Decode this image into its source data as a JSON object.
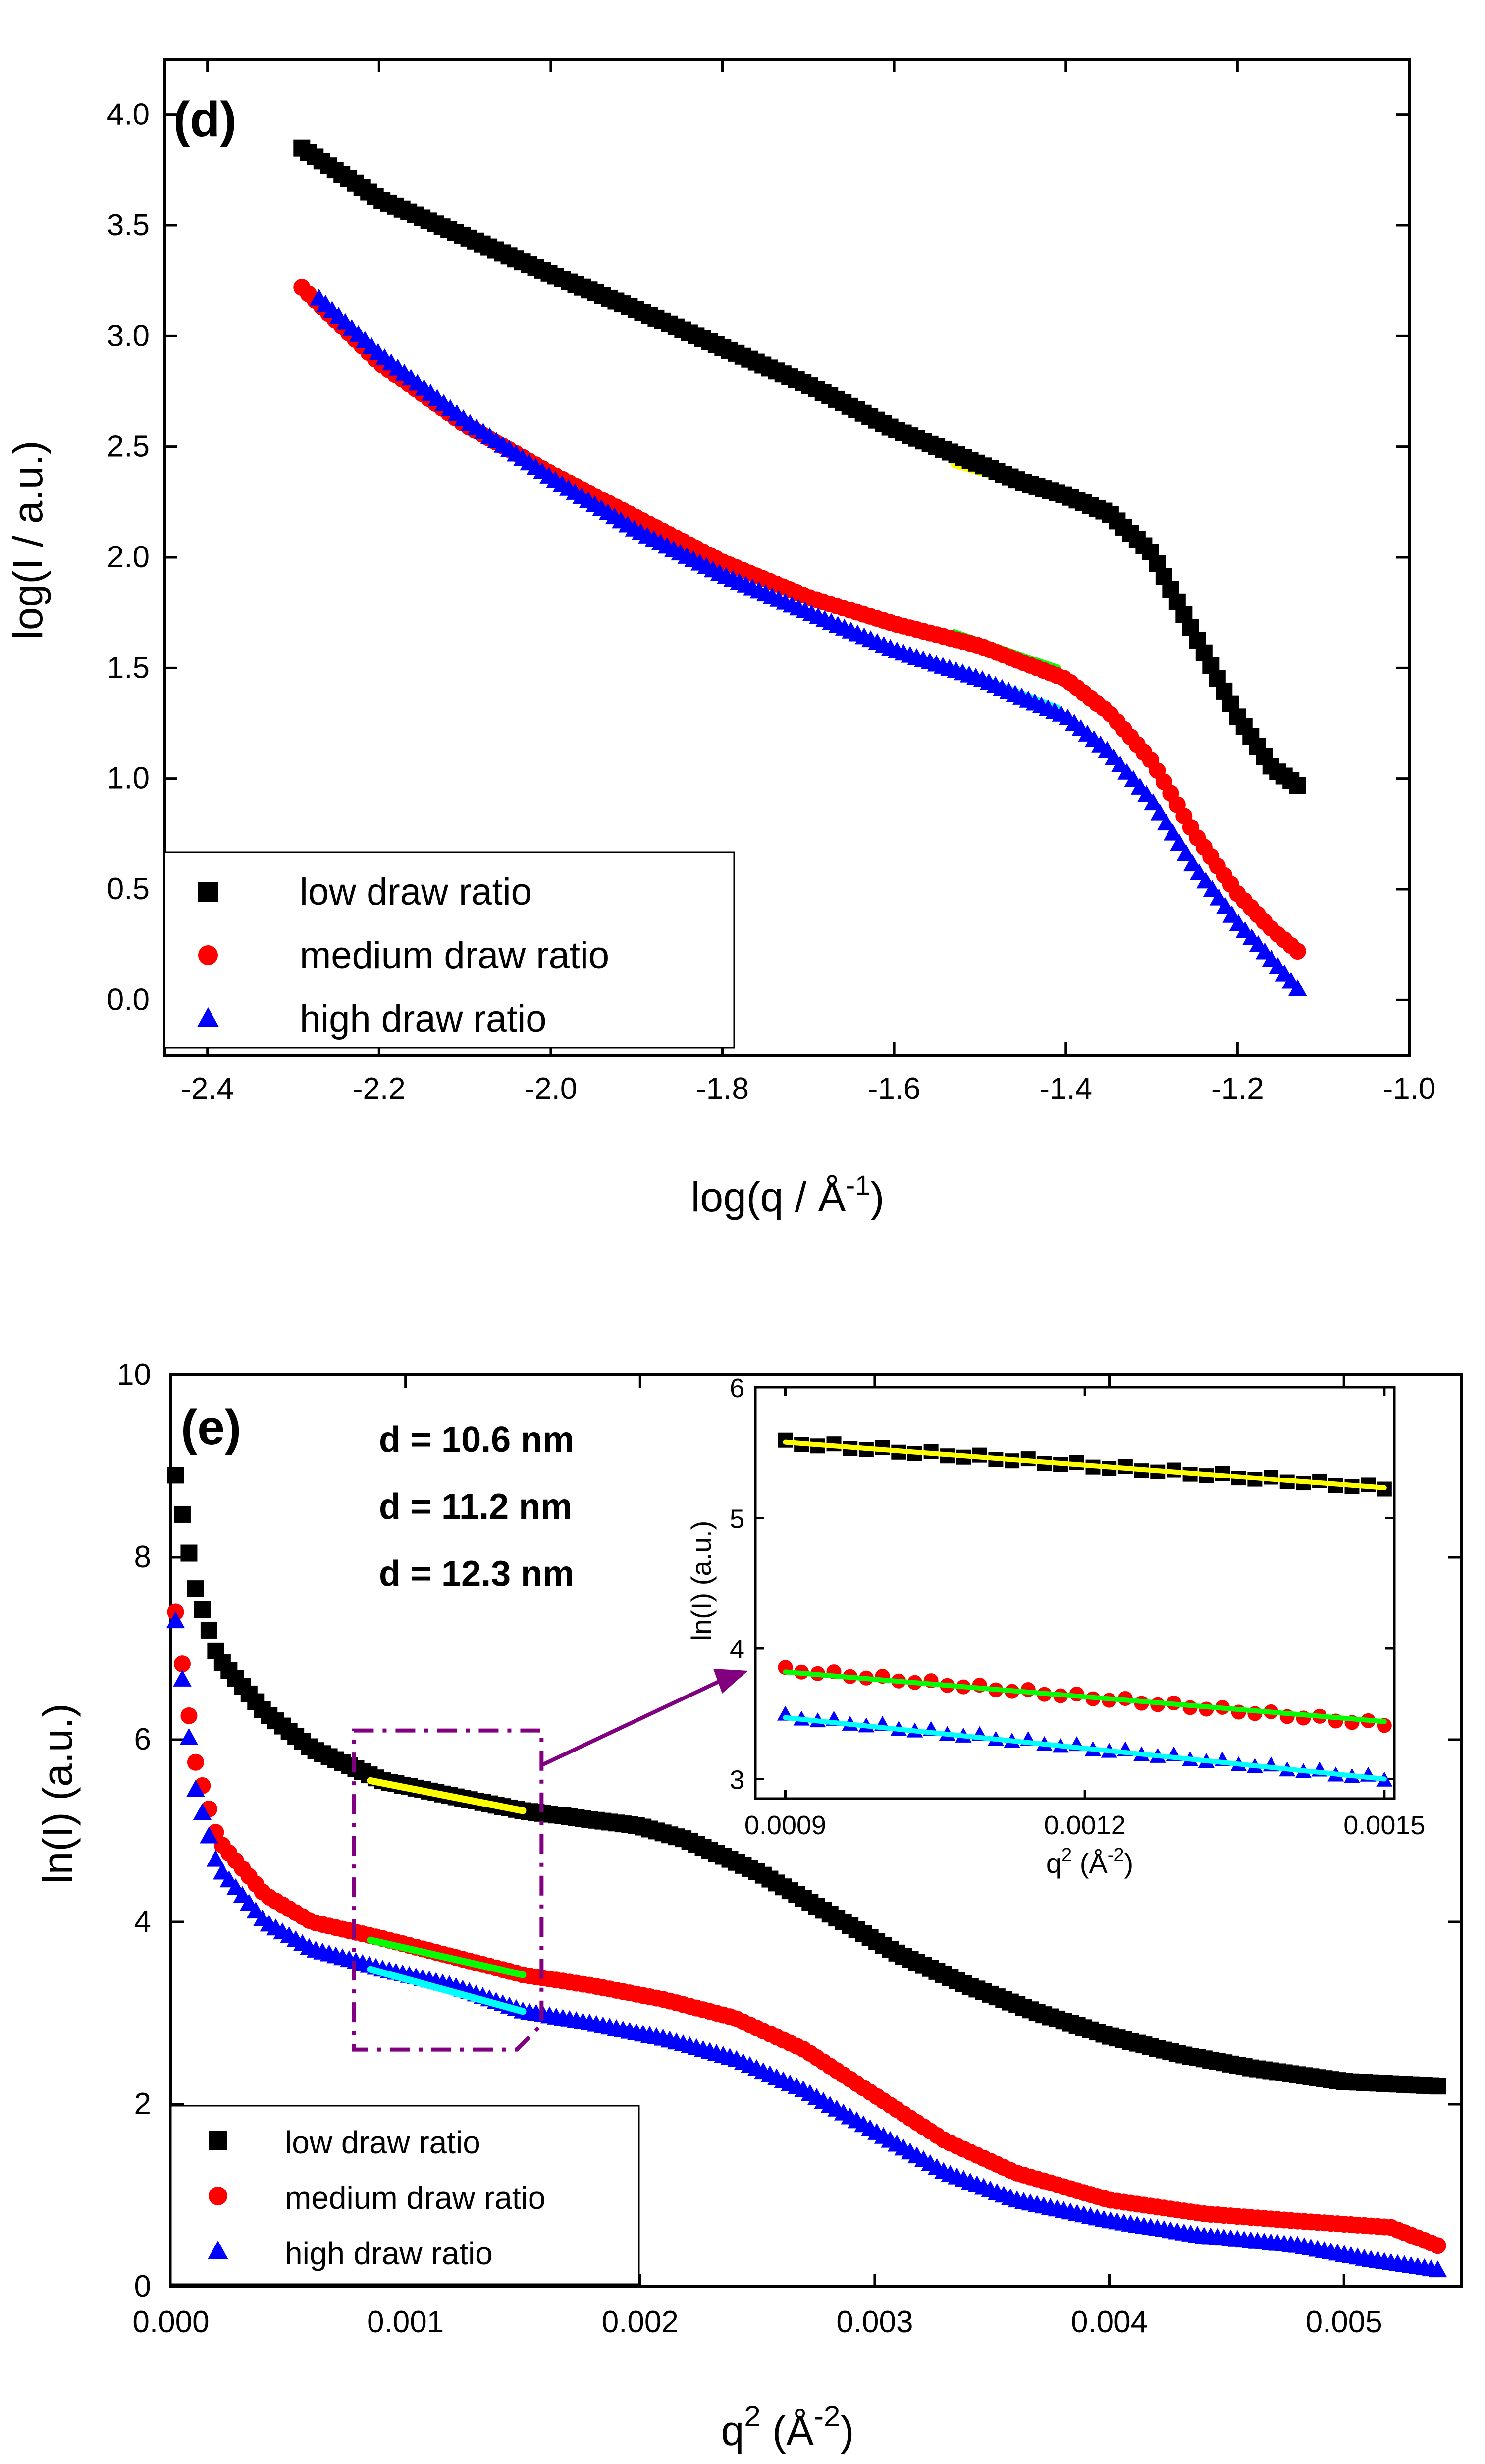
{
  "chart_data": [
    {
      "panel_label": "(d)",
      "type": "scatter",
      "xlabel": "log(q / Å",
      "xlabel_sup": "-1",
      "xlabel_end": ")",
      "ylabel": "log(I / a.u.)",
      "xlim": [
        -2.45,
        -1.0
      ],
      "ylim": [
        -0.25,
        4.25
      ],
      "x_ticks": [
        -2.4,
        -2.2,
        -2.0,
        -1.8,
        -1.6,
        -1.4,
        -1.2,
        -1.0
      ],
      "x_tick_labels": [
        "-2.4",
        "-2.2",
        "-2.0",
        "-1.8",
        "-1.6",
        "-1.4",
        "-1.2",
        "-1.0"
      ],
      "y_ticks": [
        0.0,
        0.5,
        1.0,
        1.5,
        2.0,
        2.5,
        3.0,
        3.5,
        4.0
      ],
      "y_tick_labels": [
        "0.0",
        "0.5",
        "1.0",
        "1.5",
        "2.0",
        "2.5",
        "3.0",
        "3.5",
        "4.0"
      ],
      "legend": "bottom-left",
      "series": [
        {
          "name": "low draw ratio",
          "marker": "square",
          "color": "#000000",
          "points": [
            [
              -2.29,
              3.85
            ],
            [
              -2.2,
              3.62
            ],
            [
              -2.1,
              3.45
            ],
            [
              -2.0,
              3.28
            ],
            [
              -1.9,
              3.12
            ],
            [
              -1.8,
              2.95
            ],
            [
              -1.7,
              2.78
            ],
            [
              -1.6,
              2.58
            ],
            [
              -1.5,
              2.42
            ],
            [
              -1.45,
              2.34
            ],
            [
              -1.4,
              2.28
            ],
            [
              -1.35,
              2.2
            ],
            [
              -1.3,
              2.02
            ],
            [
              -1.25,
              1.65
            ],
            [
              -1.2,
              1.28
            ],
            [
              -1.16,
              1.05
            ],
            [
              -1.13,
              0.97
            ]
          ]
        },
        {
          "name": "medium draw ratio",
          "marker": "circle",
          "color": "#ff0000",
          "points": [
            [
              -2.29,
              3.22
            ],
            [
              -2.2,
              2.88
            ],
            [
              -2.1,
              2.6
            ],
            [
              -2.0,
              2.38
            ],
            [
              -1.9,
              2.18
            ],
            [
              -1.8,
              1.98
            ],
            [
              -1.7,
              1.82
            ],
            [
              -1.6,
              1.7
            ],
            [
              -1.5,
              1.6
            ],
            [
              -1.4,
              1.45
            ],
            [
              -1.35,
              1.3
            ],
            [
              -1.3,
              1.08
            ],
            [
              -1.25,
              0.75
            ],
            [
              -1.2,
              0.48
            ],
            [
              -1.16,
              0.32
            ],
            [
              -1.13,
              0.22
            ]
          ]
        },
        {
          "name": "high draw ratio",
          "marker": "triangle",
          "color": "#0000ff",
          "points": [
            [
              -2.27,
              3.17
            ],
            [
              -2.2,
              2.92
            ],
            [
              -2.1,
              2.62
            ],
            [
              -2.0,
              2.36
            ],
            [
              -1.9,
              2.12
            ],
            [
              -1.8,
              1.92
            ],
            [
              -1.7,
              1.75
            ],
            [
              -1.6,
              1.58
            ],
            [
              -1.5,
              1.45
            ],
            [
              -1.4,
              1.28
            ],
            [
              -1.35,
              1.12
            ],
            [
              -1.3,
              0.9
            ],
            [
              -1.25,
              0.6
            ],
            [
              -1.2,
              0.35
            ],
            [
              -1.16,
              0.18
            ],
            [
              -1.13,
              0.05
            ]
          ]
        }
      ],
      "fits": [
        {
          "color": "#ffff00",
          "x": [
            -1.53,
            -1.41
          ],
          "y": [
            2.42,
            2.28
          ]
        },
        {
          "color": "#00ff00",
          "x": [
            -1.53,
            -1.41
          ],
          "y": [
            1.66,
            1.5
          ]
        },
        {
          "color": "#00ffff",
          "x": [
            -1.53,
            -1.41
          ],
          "y": [
            1.5,
            1.32
          ]
        }
      ]
    },
    {
      "panel_label": "(e)",
      "type": "scatter",
      "xlabel": "q",
      "xlabel_sup": "2",
      "xlabel_end": " (Å",
      "xlabel_sup2": "-2",
      "xlabel_end2": ")",
      "ylabel": "ln(I) (a.u.)",
      "xlim": [
        0.0,
        0.0055
      ],
      "ylim": [
        0,
        10
      ],
      "x_ticks": [
        0.0,
        0.001,
        0.002,
        0.003,
        0.004,
        0.005
      ],
      "x_tick_labels": [
        "0.000",
        "0.001",
        "0.002",
        "0.003",
        "0.004",
        "0.005"
      ],
      "y_ticks": [
        0,
        2,
        4,
        6,
        8,
        10
      ],
      "y_tick_labels": [
        "0",
        "2",
        "4",
        "6",
        "8",
        "10"
      ],
      "legend": "bottom-left",
      "annotations": [
        {
          "text": "d = 10.6 nm",
          "color": "#000000"
        },
        {
          "text": "d = 11.2 nm",
          "color": "#ff0000"
        },
        {
          "text": "d = 12.3 nm",
          "color": "#0000ff"
        }
      ],
      "series": [
        {
          "name": "low draw ratio",
          "marker": "square",
          "color": "#000000",
          "points": [
            [
              2e-05,
              8.9
            ],
            [
              0.0001,
              7.7
            ],
            [
              0.0002,
              6.9
            ],
            [
              0.0004,
              6.3
            ],
            [
              0.0006,
              5.9
            ],
            [
              0.0009,
              5.55
            ],
            [
              0.0012,
              5.38
            ],
            [
              0.0015,
              5.22
            ],
            [
              0.0018,
              5.12
            ],
            [
              0.002,
              5.05
            ],
            [
              0.0022,
              4.9
            ],
            [
              0.0025,
              4.55
            ],
            [
              0.0028,
              4.1
            ],
            [
              0.0031,
              3.65
            ],
            [
              0.0034,
              3.3
            ],
            [
              0.0037,
              3.0
            ],
            [
              0.004,
              2.75
            ],
            [
              0.0043,
              2.55
            ],
            [
              0.0046,
              2.4
            ],
            [
              0.005,
              2.25
            ],
            [
              0.0054,
              2.2
            ]
          ]
        },
        {
          "name": "medium draw ratio",
          "marker": "circle",
          "color": "#ff0000",
          "points": [
            [
              2e-05,
              7.4
            ],
            [
              0.0001,
              5.8
            ],
            [
              0.0002,
              4.9
            ],
            [
              0.0004,
              4.3
            ],
            [
              0.0006,
              4.0
            ],
            [
              0.0009,
              3.82
            ],
            [
              0.0012,
              3.62
            ],
            [
              0.0015,
              3.42
            ],
            [
              0.0018,
              3.3
            ],
            [
              0.0021,
              3.15
            ],
            [
              0.0024,
              2.95
            ],
            [
              0.0027,
              2.6
            ],
            [
              0.003,
              2.1
            ],
            [
              0.0033,
              1.6
            ],
            [
              0.0036,
              1.25
            ],
            [
              0.004,
              0.95
            ],
            [
              0.0044,
              0.8
            ],
            [
              0.0048,
              0.72
            ],
            [
              0.0052,
              0.65
            ],
            [
              0.0054,
              0.45
            ]
          ]
        },
        {
          "name": "high draw ratio",
          "marker": "triangle",
          "color": "#0000ff",
          "points": [
            [
              2e-05,
              7.3
            ],
            [
              0.0001,
              5.5
            ],
            [
              0.0002,
              4.6
            ],
            [
              0.0004,
              4.0
            ],
            [
              0.0006,
              3.7
            ],
            [
              0.0009,
              3.48
            ],
            [
              0.0012,
              3.3
            ],
            [
              0.0015,
              3.02
            ],
            [
              0.0018,
              2.88
            ],
            [
              0.0021,
              2.72
            ],
            [
              0.0024,
              2.5
            ],
            [
              0.0027,
              2.15
            ],
            [
              0.003,
              1.7
            ],
            [
              0.0033,
              1.25
            ],
            [
              0.0036,
              0.95
            ],
            [
              0.004,
              0.72
            ],
            [
              0.0044,
              0.55
            ],
            [
              0.0048,
              0.45
            ],
            [
              0.0051,
              0.3
            ],
            [
              0.0054,
              0.18
            ]
          ]
        }
      ],
      "fits": [
        {
          "color": "#ffff00",
          "x": [
            0.00085,
            0.0015
          ],
          "y": [
            5.55,
            5.22
          ]
        },
        {
          "color": "#00ff00",
          "x": [
            0.00085,
            0.0015
          ],
          "y": [
            3.8,
            3.42
          ]
        },
        {
          "color": "#00ffff",
          "x": [
            0.00085,
            0.0015
          ],
          "y": [
            3.48,
            3.02
          ]
        }
      ],
      "zoom_box": {
        "x": [
          0.00078,
          0.00158
        ],
        "y": [
          2.6,
          6.1
        ],
        "color": "#800080"
      },
      "inset": {
        "xlabel": "q",
        "xlabel_sup": "2",
        "xlabel_end": " (Å",
        "xlabel_sup2": "-2",
        "xlabel_end2": ")",
        "ylabel": "ln(I) (a.u.)",
        "xlim": [
          0.00087,
          0.00151
        ],
        "ylim": [
          2.85,
          6.0
        ],
        "x_ticks": [
          0.0009,
          0.0012,
          0.0015
        ],
        "x_tick_labels": [
          "0.0009",
          "0.0012",
          "0.0015"
        ],
        "y_ticks": [
          3,
          4,
          5,
          6
        ],
        "y_tick_labels": [
          "3",
          "4",
          "5",
          "6"
        ],
        "series": [
          {
            "name": "low draw ratio",
            "marker": "square",
            "color": "#000000",
            "start": [
              0.0009,
              5.58
            ],
            "end": [
              0.0015,
              5.23
            ]
          },
          {
            "name": "medium draw ratio",
            "marker": "circle",
            "color": "#ff0000",
            "start": [
              0.0009,
              3.84
            ],
            "end": [
              0.0015,
              3.42
            ]
          },
          {
            "name": "high draw ratio",
            "marker": "triangle",
            "color": "#0000ff",
            "start": [
              0.0009,
              3.48
            ],
            "end": [
              0.0015,
              3.0
            ]
          }
        ],
        "fits": [
          {
            "color": "#ffff00",
            "x": [
              0.0009,
              0.0015
            ],
            "y": [
              5.58,
              5.23
            ]
          },
          {
            "color": "#00ff00",
            "x": [
              0.0009,
              0.0015
            ],
            "y": [
              3.82,
              3.44
            ]
          },
          {
            "color": "#00ffff",
            "x": [
              0.0009,
              0.0015
            ],
            "y": [
              3.47,
              3.0
            ]
          }
        ]
      }
    }
  ]
}
